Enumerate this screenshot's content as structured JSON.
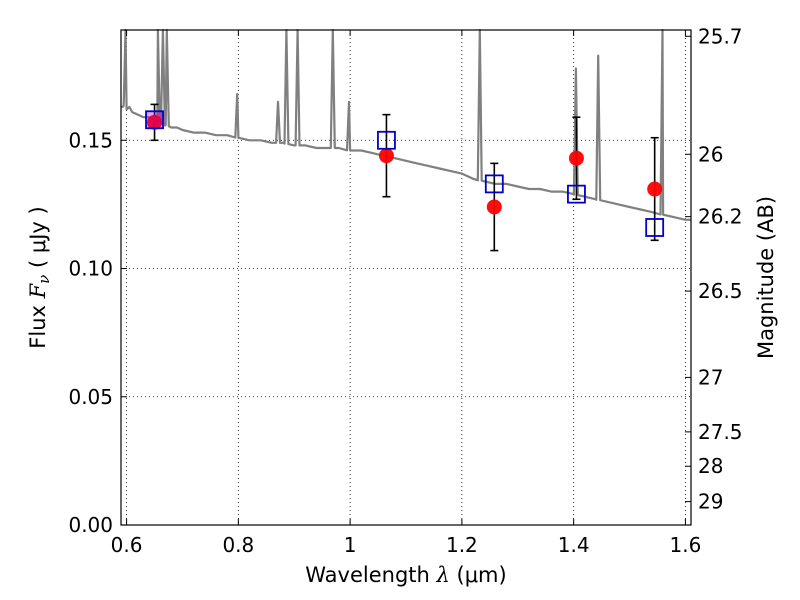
{
  "chart_data": {
    "type": "scatter",
    "title": "",
    "xlabel": "Wavelength  λ (μm)",
    "ylabel": "Flux  Fν ( μJy )",
    "ylabel_right": "Magnitude (AB)",
    "xlim": [
      0.59,
      1.61
    ],
    "ylim": [
      0.0,
      0.193
    ],
    "grid": true,
    "x_ticks": [
      0.6,
      0.8,
      1.0,
      1.2,
      1.4,
      1.6
    ],
    "x_tick_labels": [
      "0.6",
      "0.8",
      "1",
      "1.2",
      "1.4",
      "1.6"
    ],
    "y_ticks": [
      0.0,
      0.05,
      0.1,
      0.15
    ],
    "y_tick_labels": [
      "0.00",
      "0.05",
      "0.10",
      "0.15"
    ],
    "right_ticks": [
      {
        "mag": 25.7,
        "label": "25.7"
      },
      {
        "mag": 26,
        "label": "26"
      },
      {
        "mag": 26.2,
        "label": "26.2"
      },
      {
        "mag": 26.5,
        "label": "26.5"
      },
      {
        "mag": 27,
        "label": "27"
      },
      {
        "mag": 27.5,
        "label": "27.5"
      },
      {
        "mag": 28,
        "label": "28"
      },
      {
        "mag": 29,
        "label": "29"
      }
    ],
    "series": [
      {
        "kind": "model-spectrum",
        "color": "#808080",
        "x": [
          0.59,
          0.595,
          0.6,
          0.605,
          0.61,
          0.62,
          0.63,
          0.64,
          0.65,
          0.655,
          0.66,
          0.67,
          0.68,
          0.69,
          0.7,
          0.72,
          0.74,
          0.76,
          0.78,
          0.8,
          0.82,
          0.84,
          0.86,
          0.88,
          0.9,
          0.92,
          0.94,
          0.96,
          0.98,
          1.0,
          1.02,
          1.04,
          1.06,
          1.08,
          1.1,
          1.12,
          1.14,
          1.16,
          1.18,
          1.2,
          1.22,
          1.24,
          1.26,
          1.28,
          1.3,
          1.32,
          1.34,
          1.36,
          1.38,
          1.4,
          1.42,
          1.44,
          1.46,
          1.48,
          1.5,
          1.52,
          1.54,
          1.56,
          1.58,
          1.6,
          1.61
        ],
        "y": [
          0.163,
          0.165,
          0.162,
          0.163,
          0.161,
          0.16,
          0.159,
          0.159,
          0.158,
          0.157,
          0.157,
          0.156,
          0.155,
          0.155,
          0.154,
          0.153,
          0.153,
          0.152,
          0.152,
          0.151,
          0.15,
          0.15,
          0.149,
          0.149,
          0.148,
          0.148,
          0.147,
          0.147,
          0.147,
          0.146,
          0.146,
          0.145,
          0.144,
          0.143,
          0.142,
          0.141,
          0.14,
          0.139,
          0.138,
          0.137,
          0.135,
          0.134,
          0.133,
          0.133,
          0.132,
          0.131,
          0.131,
          0.13,
          0.13,
          0.129,
          0.128,
          0.127,
          0.126,
          0.125,
          0.124,
          0.123,
          0.122,
          0.121,
          0.12,
          0.119,
          0.119
        ]
      },
      {
        "kind": "emission-lines",
        "color": "#808080",
        "lines": [
          {
            "x": 0.598,
            "peak": 0.193
          },
          {
            "x": 0.656,
            "peak": 0.193
          },
          {
            "x": 0.665,
            "peak": 0.193
          },
          {
            "x": 0.672,
            "peak": 0.193
          },
          {
            "x": 0.798,
            "peak": 0.168
          },
          {
            "x": 0.871,
            "peak": 0.165
          },
          {
            "x": 0.886,
            "peak": 0.193
          },
          {
            "x": 0.906,
            "peak": 0.193
          },
          {
            "x": 0.969,
            "peak": 0.193
          },
          {
            "x": 0.998,
            "peak": 0.165
          },
          {
            "x": 1.232,
            "peak": 0.193
          },
          {
            "x": 1.404,
            "peak": 0.178
          },
          {
            "x": 1.444,
            "peak": 0.183
          },
          {
            "x": 1.559,
            "peak": 0.193
          }
        ]
      },
      {
        "kind": "observed",
        "marker": "circle",
        "color": "#ff0000",
        "x": [
          0.65,
          1.065,
          1.258,
          1.405,
          1.545
        ],
        "y": [
          0.157,
          0.144,
          0.124,
          0.143,
          0.131
        ],
        "yerr": [
          0.007,
          0.016,
          0.017,
          0.016,
          0.02
        ]
      },
      {
        "kind": "model-photometry",
        "marker": "open-square",
        "color": "#0000cc",
        "x": [
          0.65,
          1.065,
          1.258,
          1.405,
          1.545
        ],
        "y": [
          0.158,
          0.15,
          0.133,
          0.129,
          0.116
        ]
      }
    ]
  }
}
